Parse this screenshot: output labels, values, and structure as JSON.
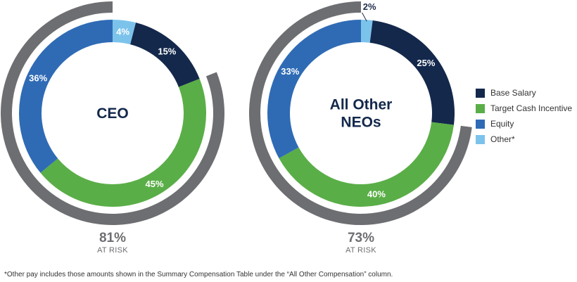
{
  "chart_data": [
    {
      "type": "pie",
      "variant": "donut",
      "title": "CEO",
      "slices": [
        {
          "name": "Other*",
          "value": 4,
          "label": "4%"
        },
        {
          "name": "Base Salary",
          "value": 15,
          "label": "15%"
        },
        {
          "name": "Target Cash Incentive",
          "value": 45,
          "label": "45%"
        },
        {
          "name": "Equity",
          "value": 36,
          "label": "36%"
        }
      ],
      "at_risk": {
        "value": 81,
        "label": "81%",
        "caption": "AT RISK"
      }
    },
    {
      "type": "pie",
      "variant": "donut",
      "title_lines": [
        "All Other",
        "NEOs"
      ],
      "slices": [
        {
          "name": "Other*",
          "value": 2,
          "label": "2%"
        },
        {
          "name": "Base Salary",
          "value": 25,
          "label": "25%"
        },
        {
          "name": "Target Cash Incentive",
          "value": 40,
          "label": "40%"
        },
        {
          "name": "Equity",
          "value": 33,
          "label": "33%"
        }
      ],
      "at_risk": {
        "value": 73,
        "label": "73%",
        "caption": "AT RISK"
      }
    }
  ],
  "legend": [
    {
      "key": "Base Salary",
      "label": "Base Salary",
      "color": "#13284b"
    },
    {
      "key": "Target Cash Incentive",
      "label": "Target Cash Incentive",
      "color": "#5aae47"
    },
    {
      "key": "Equity",
      "label": "Equity",
      "color": "#2f6bb5"
    },
    {
      "key": "Other*",
      "label": "Other*",
      "color": "#7cc3ec"
    }
  ],
  "colors": {
    "at_risk_arc": "#6d6e71",
    "center_text": "#13284b"
  },
  "footnote": "*Other pay includes those amounts shown in the Summary Compensation Table under the “All Other Compensation” column."
}
